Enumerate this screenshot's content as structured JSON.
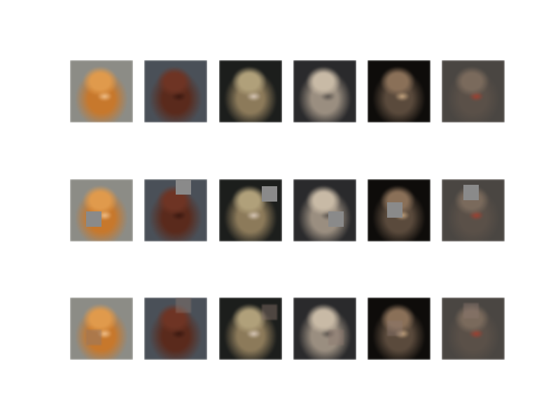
{
  "figure": {
    "rows": [
      {
        "row_type": "original",
        "tiles": [
          {
            "subject": "pomeranian-dog",
            "bg": "#8c8c86",
            "body": "#c7782c",
            "head": "#e09a4c",
            "accent": "#f0c08a",
            "mask": "none"
          },
          {
            "subject": "brown-long-haired-dog",
            "bg": "#4a5058",
            "body": "#5a2a1c",
            "head": "#6e3424",
            "accent": "#3a1810",
            "mask": "none"
          },
          {
            "subject": "tabby-kitten",
            "bg": "#1c1e1c",
            "body": "#8c7a5a",
            "head": "#b0a07a",
            "accent": "#d8c8b8",
            "mask": "none"
          },
          {
            "subject": "white-dog-in-shadow",
            "bg": "#2a2a2c",
            "body": "#9a8e80",
            "head": "#c8baa6",
            "accent": "#5a544e",
            "mask": "none"
          },
          {
            "subject": "tabby-cat-face",
            "bg": "#0e0c0a",
            "body": "#5a4a3c",
            "head": "#8a7058",
            "accent": "#c8a882",
            "mask": "none"
          },
          {
            "subject": "tabby-cat-sitting",
            "bg": "#4a4642",
            "body": "#5a5048",
            "head": "#7a6a5c",
            "accent": "#a04030",
            "mask": "none"
          }
        ]
      },
      {
        "row_type": "masked",
        "tiles": [
          {
            "subject": "pomeranian-dog",
            "bg": "#8c8c86",
            "body": "#c7782c",
            "head": "#e09a4c",
            "accent": "#f0c08a",
            "mask": "grey"
          },
          {
            "subject": "brown-long-haired-dog",
            "bg": "#4a5058",
            "body": "#5a2a1c",
            "head": "#6e3424",
            "accent": "#3a1810",
            "mask": "grey"
          },
          {
            "subject": "tabby-kitten",
            "bg": "#1c1e1c",
            "body": "#8c7a5a",
            "head": "#b0a07a",
            "accent": "#d8c8b8",
            "mask": "grey"
          },
          {
            "subject": "white-dog-in-shadow",
            "bg": "#2a2a2c",
            "body": "#9a8e80",
            "head": "#c8baa6",
            "accent": "#5a544e",
            "mask": "grey"
          },
          {
            "subject": "tabby-cat-face",
            "bg": "#0e0c0a",
            "body": "#5a4a3c",
            "head": "#8a7058",
            "accent": "#c8a882",
            "mask": "grey"
          },
          {
            "subject": "tabby-cat-sitting",
            "bg": "#4a4642",
            "body": "#5a5048",
            "head": "#7a6a5c",
            "accent": "#a04030",
            "mask": "grey"
          }
        ]
      },
      {
        "row_type": "reconstructed",
        "tiles": [
          {
            "subject": "pomeranian-dog",
            "bg": "#8c8c86",
            "body": "#c7782c",
            "head": "#e09a4c",
            "accent": "#f0c08a",
            "mask": "recon"
          },
          {
            "subject": "brown-long-haired-dog",
            "bg": "#4a5058",
            "body": "#5a2a1c",
            "head": "#6e3424",
            "accent": "#3a1810",
            "mask": "recon"
          },
          {
            "subject": "tabby-kitten",
            "bg": "#1c1e1c",
            "body": "#8c7a5a",
            "head": "#b0a07a",
            "accent": "#d8c8b8",
            "mask": "recon"
          },
          {
            "subject": "white-dog-in-shadow",
            "bg": "#2a2a2c",
            "body": "#9a8e80",
            "head": "#c8baa6",
            "accent": "#5a544e",
            "mask": "recon"
          },
          {
            "subject": "tabby-cat-face",
            "bg": "#0e0c0a",
            "body": "#5a4a3c",
            "head": "#8a7058",
            "accent": "#c8a882",
            "mask": "recon"
          },
          {
            "subject": "tabby-cat-sitting",
            "bg": "#4a4642",
            "body": "#5a5048",
            "head": "#7a6a5c",
            "accent": "#a04030",
            "mask": "recon"
          }
        ]
      }
    ]
  }
}
